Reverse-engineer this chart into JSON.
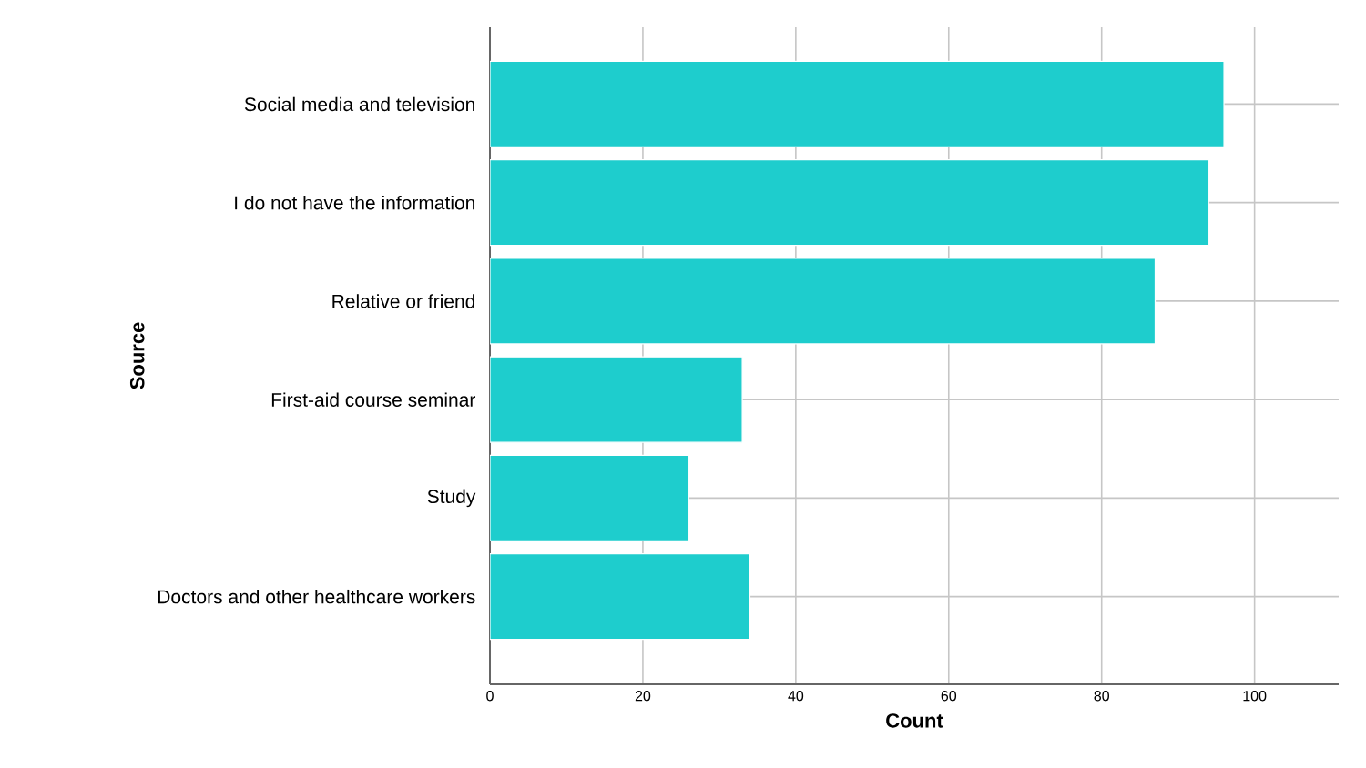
{
  "chart_data": {
    "type": "bar",
    "orientation": "horizontal",
    "xlabel": "Count",
    "ylabel": "Source",
    "categories": [
      "Social media and television",
      "I do not have the information",
      "Relative or friend",
      "First-aid course seminar",
      "Study",
      "Doctors and other healthcare workers"
    ],
    "values": [
      96,
      94,
      87,
      33,
      26,
      34
    ],
    "color": "#1ecdcd",
    "xlim": [
      0,
      111
    ],
    "xticks": [
      0,
      20,
      40,
      60,
      80,
      100
    ],
    "grid": true
  }
}
